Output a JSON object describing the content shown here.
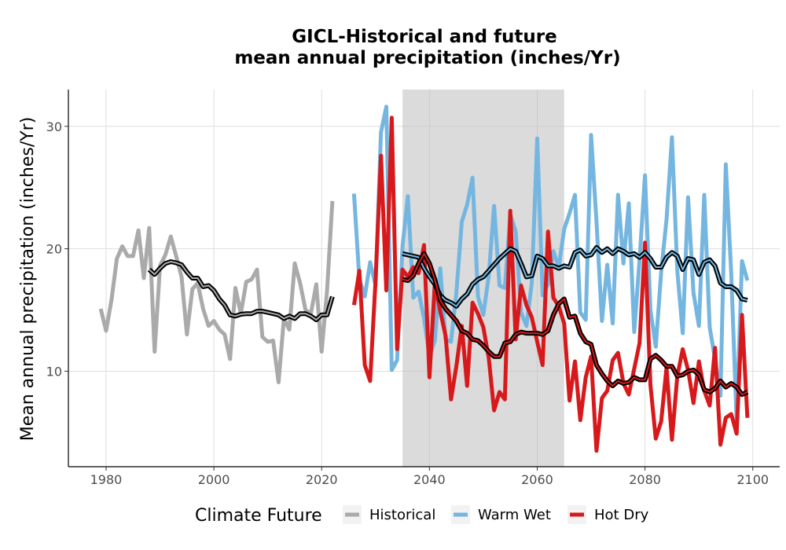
{
  "chart_data": {
    "type": "line",
    "title_line1": "GICL-Historical and future",
    "title_line2": "mean annual precipitation (inches/Yr)",
    "xlabel": "",
    "ylabel": "Mean annual precipitation (inches/Yr)",
    "xlim": [
      1973,
      2105
    ],
    "ylim": [
      2.2,
      33.0
    ],
    "x_ticks": [
      1980,
      2000,
      2020,
      2040,
      2060,
      2080,
      2100
    ],
    "y_ticks": [
      10,
      20,
      30
    ],
    "grid": true,
    "shaded_period": [
      2035,
      2065
    ],
    "legend": {
      "title": "Climate Future",
      "placement": "bottom"
    },
    "series": [
      {
        "name": "Historical",
        "color": "#aaaaaa",
        "x": [
          1979,
          1980,
          1981,
          1982,
          1983,
          1984,
          1985,
          1986,
          1987,
          1988,
          1989,
          1990,
          1991,
          1992,
          1993,
          1994,
          1995,
          1996,
          1997,
          1998,
          1999,
          2000,
          2001,
          2002,
          2003,
          2004,
          2005,
          2006,
          2007,
          2008,
          2009,
          2010,
          2011,
          2012,
          2013,
          2014,
          2015,
          2016,
          2017,
          2018,
          2019,
          2020,
          2021,
          2022
        ],
        "y": [
          15.1,
          13.3,
          15.8,
          19.2,
          20.2,
          19.4,
          19.4,
          21.5,
          17.6,
          21.7,
          11.6,
          18.6,
          19.5,
          21.0,
          19.4,
          17.7,
          13.0,
          16.7,
          17.2,
          15.1,
          13.7,
          14.1,
          13.4,
          13.0,
          11.0,
          16.8,
          14.7,
          17.3,
          17.5,
          18.3,
          12.8,
          12.4,
          12.5,
          9.1,
          14.3,
          13.4,
          18.8,
          17.2,
          15.0,
          14.7,
          17.1,
          11.6,
          16.6,
          23.9
        ]
      },
      {
        "name": "Warm Wet",
        "color": "#74b6e0",
        "x": [
          2026,
          2027,
          2028,
          2029,
          2030,
          2031,
          2032,
          2033,
          2034,
          2035,
          2036,
          2037,
          2038,
          2039,
          2040,
          2041,
          2042,
          2043,
          2044,
          2045,
          2046,
          2047,
          2048,
          2049,
          2050,
          2051,
          2052,
          2053,
          2054,
          2055,
          2056,
          2057,
          2058,
          2059,
          2060,
          2061,
          2062,
          2063,
          2064,
          2065,
          2066,
          2067,
          2068,
          2069,
          2070,
          2071,
          2072,
          2073,
          2074,
          2075,
          2076,
          2077,
          2078,
          2079,
          2080,
          2081,
          2082,
          2083,
          2084,
          2085,
          2086,
          2087,
          2088,
          2089,
          2090,
          2091,
          2092,
          2093,
          2094,
          2095,
          2096,
          2097,
          2098,
          2099
        ],
        "y": [
          24.5,
          17.5,
          16.1,
          18.9,
          17.0,
          29.5,
          31.6,
          10.1,
          10.9,
          20.2,
          24.3,
          16.0,
          16.5,
          14.3,
          11.2,
          12.5,
          18.4,
          12.6,
          12.4,
          16.4,
          22.2,
          23.6,
          25.8,
          16.1,
          14.6,
          17.8,
          23.5,
          17.0,
          16.8,
          22.8,
          21.4,
          14.8,
          13.7,
          17.2,
          29.0,
          16.2,
          17.1,
          19.8,
          18.5,
          21.6,
          22.9,
          24.4,
          14.8,
          14.2,
          29.3,
          22.2,
          14.1,
          18.7,
          13.9,
          24.4,
          18.8,
          23.7,
          13.2,
          19.1,
          26.0,
          15.0,
          12.0,
          18.1,
          22.4,
          29.1,
          18.2,
          13.1,
          24.2,
          16.4,
          13.7,
          24.4,
          13.6,
          11.0,
          8.0,
          26.9,
          18.0,
          6.0,
          19.0,
          17.4
        ]
      },
      {
        "name": "Hot Dry",
        "color": "#d7191c",
        "x": [
          2026,
          2027,
          2028,
          2029,
          2030,
          2031,
          2032,
          2033,
          2034,
          2035,
          2036,
          2037,
          2038,
          2039,
          2040,
          2041,
          2042,
          2043,
          2044,
          2045,
          2046,
          2047,
          2048,
          2049,
          2050,
          2051,
          2052,
          2053,
          2054,
          2055,
          2056,
          2057,
          2058,
          2059,
          2060,
          2061,
          2062,
          2063,
          2064,
          2065,
          2066,
          2067,
          2068,
          2069,
          2070,
          2071,
          2072,
          2073,
          2074,
          2075,
          2076,
          2077,
          2078,
          2079,
          2080,
          2081,
          2082,
          2083,
          2084,
          2085,
          2086,
          2087,
          2088,
          2089,
          2090,
          2091,
          2092,
          2093,
          2094,
          2095,
          2096,
          2097,
          2098,
          2099
        ],
        "y": [
          15.4,
          18.2,
          10.5,
          9.2,
          17.4,
          27.6,
          16.6,
          30.7,
          11.8,
          18.3,
          17.7,
          18.5,
          18.0,
          20.3,
          9.5,
          17.2,
          14.9,
          12.9,
          7.7,
          10.4,
          13.7,
          8.8,
          15.6,
          14.7,
          13.6,
          11.1,
          6.8,
          8.3,
          7.7,
          23.1,
          12.6,
          17.0,
          15.4,
          14.4,
          12.4,
          10.5,
          21.4,
          16.0,
          15.3,
          13.9,
          7.6,
          10.8,
          6.0,
          9.5,
          11.2,
          3.5,
          7.8,
          8.4,
          10.9,
          11.5,
          9.0,
          8.1,
          10.2,
          12.3,
          20.5,
          8.9,
          4.5,
          5.9,
          10.3,
          4.4,
          9.6,
          11.8,
          10.1,
          7.4,
          10.8,
          8.4,
          7.2,
          11.9,
          4.0,
          6.2,
          6.5,
          4.9,
          14.6,
          6.2
        ]
      }
    ],
    "rolling_means": [
      {
        "series": "Historical",
        "color": "#000000",
        "x": [
          1988,
          1989,
          1990,
          1991,
          1992,
          1993,
          1994,
          1995,
          1996,
          1997,
          1998,
          1999,
          2000,
          2001,
          2002,
          2003,
          2004,
          2005,
          2006,
          2007,
          2008,
          2009,
          2010,
          2011,
          2012,
          2013,
          2014,
          2015,
          2016,
          2017,
          2018,
          2019,
          2020,
          2021,
          2022
        ],
        "y": [
          18.3,
          17.9,
          18.4,
          18.8,
          18.95,
          18.85,
          18.7,
          18.1,
          17.6,
          17.6,
          16.9,
          17.0,
          16.6,
          15.9,
          15.4,
          14.6,
          14.5,
          14.65,
          14.7,
          14.7,
          14.9,
          14.9,
          14.8,
          14.7,
          14.6,
          14.3,
          14.5,
          14.3,
          14.7,
          14.7,
          14.5,
          14.2,
          14.6,
          14.6,
          16.1
        ]
      },
      {
        "series": "Warm Wet",
        "color": "#000000",
        "x": [
          2035,
          2036,
          2037,
          2038,
          2039,
          2040,
          2041,
          2042,
          2043,
          2044,
          2045,
          2046,
          2047,
          2048,
          2049,
          2050,
          2051,
          2052,
          2053,
          2054,
          2055,
          2056,
          2057,
          2058,
          2059,
          2060,
          2061,
          2062,
          2063,
          2064,
          2065,
          2066,
          2067,
          2068,
          2069,
          2070,
          2071,
          2072,
          2073,
          2074,
          2075,
          2076,
          2077,
          2078,
          2079,
          2080,
          2081,
          2082,
          2083,
          2084,
          2085,
          2086,
          2087,
          2088,
          2089,
          2090,
          2091,
          2092,
          2093,
          2094,
          2095,
          2096,
          2097,
          2098,
          2099
        ],
        "y": [
          19.6,
          19.5,
          19.4,
          19.3,
          18.4,
          17.7,
          17.1,
          16.2,
          15.8,
          15.6,
          15.3,
          15.9,
          16.3,
          17.1,
          17.5,
          17.7,
          18.2,
          18.7,
          19.2,
          19.6,
          20.0,
          19.8,
          18.8,
          17.7,
          17.8,
          19.4,
          19.2,
          18.6,
          18.6,
          18.4,
          18.6,
          18.5,
          19.7,
          19.9,
          19.4,
          19.5,
          20.1,
          19.7,
          20.0,
          19.6,
          20.0,
          19.8,
          19.5,
          19.6,
          19.3,
          19.7,
          19.2,
          18.5,
          18.5,
          19.3,
          19.7,
          19.4,
          18.3,
          19.2,
          19.1,
          17.9,
          18.9,
          19.1,
          18.6,
          17.2,
          16.9,
          16.9,
          16.6,
          15.9,
          15.8
        ]
      },
      {
        "series": "Hot Dry",
        "color": "#000000",
        "x": [
          2035,
          2036,
          2037,
          2038,
          2039,
          2040,
          2041,
          2042,
          2043,
          2044,
          2045,
          2046,
          2047,
          2048,
          2049,
          2050,
          2051,
          2052,
          2053,
          2054,
          2055,
          2056,
          2057,
          2058,
          2059,
          2060,
          2061,
          2062,
          2063,
          2064,
          2065,
          2066,
          2067,
          2068,
          2069,
          2070,
          2071,
          2072,
          2073,
          2074,
          2075,
          2076,
          2077,
          2078,
          2079,
          2080,
          2081,
          2082,
          2083,
          2084,
          2085,
          2086,
          2087,
          2088,
          2089,
          2090,
          2091,
          2092,
          2093,
          2094,
          2095,
          2096,
          2097,
          2098,
          2099
        ],
        "y": [
          17.5,
          17.4,
          17.8,
          18.8,
          19.6,
          18.8,
          17.5,
          15.8,
          15.1,
          14.6,
          14.1,
          13.3,
          13.1,
          12.6,
          12.5,
          12.1,
          11.6,
          11.2,
          11.2,
          12.3,
          12.4,
          13.0,
          13.2,
          13.1,
          13.1,
          13.1,
          13.0,
          13.3,
          14.6,
          15.5,
          15.9,
          14.4,
          14.5,
          13.1,
          12.4,
          12.2,
          10.5,
          9.8,
          9.2,
          8.8,
          9.2,
          9.0,
          9.1,
          9.5,
          9.3,
          9.3,
          11.0,
          11.3,
          10.9,
          10.4,
          10.4,
          9.6,
          9.7,
          10.0,
          10.1,
          9.7,
          8.5,
          8.3,
          8.6,
          9.2,
          8.7,
          9.0,
          8.7,
          8.1,
          8.3
        ]
      }
    ]
  }
}
